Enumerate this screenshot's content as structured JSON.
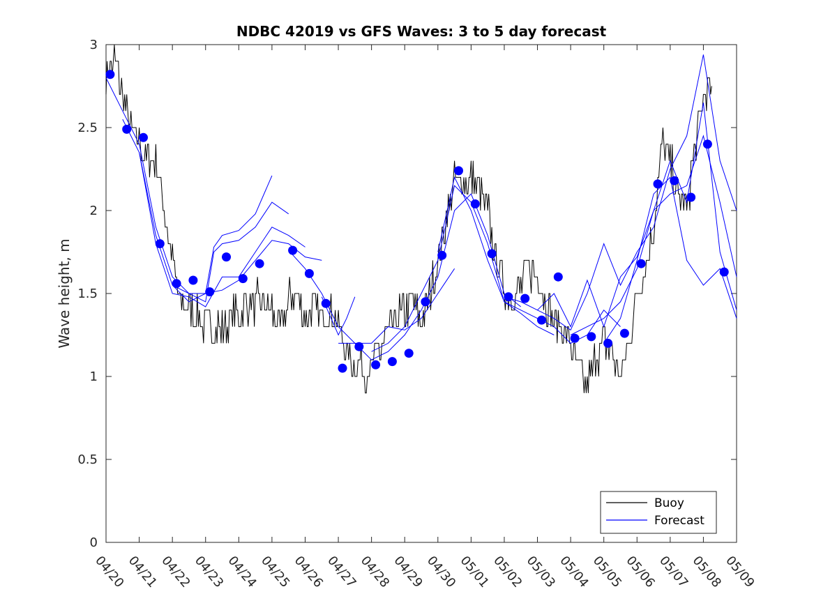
{
  "chart_data": {
    "type": "line",
    "title": "NDBC 42019 vs GFS Waves: 3 to 5 day forecast",
    "xlabel": "",
    "ylabel": "Wave height, m",
    "xlim": [
      "04/20",
      "05/09"
    ],
    "ylim": [
      0,
      3
    ],
    "x_tick_labels": [
      "04/20",
      "04/21",
      "04/22",
      "04/23",
      "04/24",
      "04/25",
      "04/26",
      "04/27",
      "04/28",
      "04/29",
      "04/30",
      "05/01",
      "05/02",
      "05/03",
      "05/04",
      "05/05",
      "05/06",
      "05/07",
      "05/08",
      "05/09"
    ],
    "y_tick_labels": [
      "0",
      "0.5",
      "1",
      "1.5",
      "2",
      "2.5",
      "3"
    ],
    "y_ticks": [
      0,
      0.5,
      1,
      1.5,
      2,
      2.5,
      3
    ],
    "grid": false,
    "legend": {
      "placement": "bottom-right",
      "entries": [
        {
          "label": "Buoy",
          "color": "#000000"
        },
        {
          "label": "Forecast",
          "color": "#0000ff"
        }
      ]
    },
    "buoy_anchors": [
      [
        "04/20 00:00",
        2.8
      ],
      [
        "04/20 06:00",
        2.9
      ],
      [
        "04/20 12:00",
        2.7
      ],
      [
        "04/20 18:00",
        2.5
      ],
      [
        "04/21 00:00",
        2.4
      ],
      [
        "04/21 06:00",
        2.3
      ],
      [
        "04/21 12:00",
        2.3
      ],
      [
        "04/21 18:00",
        2.0
      ],
      [
        "04/22 00:00",
        1.7
      ],
      [
        "04/22 06:00",
        1.45
      ],
      [
        "04/22 12:00",
        1.4
      ],
      [
        "04/22 18:00",
        1.35
      ],
      [
        "04/23 00:00",
        1.3
      ],
      [
        "04/23 06:00",
        1.3
      ],
      [
        "04/23 12:00",
        1.3
      ],
      [
        "04/23 18:00",
        1.35
      ],
      [
        "04/24 00:00",
        1.4
      ],
      [
        "04/24 06:00",
        1.45
      ],
      [
        "04/24 12:00",
        1.45
      ],
      [
        "04/24 18:00",
        1.45
      ],
      [
        "04/25 00:00",
        1.4
      ],
      [
        "04/25 06:00",
        1.25
      ],
      [
        "04/25 12:00",
        1.45
      ],
      [
        "04/25 18:00",
        1.5
      ],
      [
        "04/26 00:00",
        1.35
      ],
      [
        "04/26 06:00",
        1.4
      ],
      [
        "04/26 12:00",
        1.35
      ],
      [
        "04/26 18:00",
        1.4
      ],
      [
        "04/27 00:00",
        1.3
      ],
      [
        "04/27 06:00",
        1.15
      ],
      [
        "04/27 12:00",
        1.1
      ],
      [
        "04/27 18:00",
        1.05
      ],
      [
        "04/28 00:00",
        1.05
      ],
      [
        "04/28 06:00",
        1.15
      ],
      [
        "04/28 12:00",
        1.25
      ],
      [
        "04/28 18:00",
        1.35
      ],
      [
        "04/29 00:00",
        1.4
      ],
      [
        "04/29 06:00",
        1.45
      ],
      [
        "04/29 12:00",
        1.35
      ],
      [
        "04/29 18:00",
        1.5
      ],
      [
        "04/30 00:00",
        1.7
      ],
      [
        "04/30 06:00",
        1.95
      ],
      [
        "04/30 12:00",
        2.15
      ],
      [
        "04/30 18:00",
        2.2
      ],
      [
        "05/01 00:00",
        2.2
      ],
      [
        "05/01 06:00",
        2.15
      ],
      [
        "05/01 12:00",
        2.0
      ],
      [
        "05/01 18:00",
        1.7
      ],
      [
        "05/02 00:00",
        1.55
      ],
      [
        "05/02 06:00",
        1.5
      ],
      [
        "05/02 12:00",
        1.55
      ],
      [
        "05/02 18:00",
        1.65
      ],
      [
        "05/03 00:00",
        1.6
      ],
      [
        "05/03 06:00",
        1.45
      ],
      [
        "05/03 12:00",
        1.35
      ],
      [
        "05/03 18:00",
        1.3
      ],
      [
        "05/04 00:00",
        1.2
      ],
      [
        "05/04 06:00",
        1.05
      ],
      [
        "05/04 12:00",
        0.95
      ],
      [
        "05/04 18:00",
        1.1
      ],
      [
        "05/05 00:00",
        1.2
      ],
      [
        "05/05 06:00",
        1.15
      ],
      [
        "05/05 12:00",
        1.0
      ],
      [
        "05/05 18:00",
        1.2
      ],
      [
        "05/06 00:00",
        1.5
      ],
      [
        "05/06 06:00",
        1.65
      ],
      [
        "05/06 12:00",
        1.9
      ],
      [
        "05/06 18:00",
        2.4
      ],
      [
        "05/07 00:00",
        2.3
      ],
      [
        "05/07 06:00",
        2.1
      ],
      [
        "05/07 12:00",
        2.0
      ],
      [
        "05/07 18:00",
        2.4
      ],
      [
        "05/08 00:00",
        2.7
      ],
      [
        "05/08 06:00",
        2.75
      ]
    ],
    "forecast_markers": [
      [
        "04/20 03:00",
        2.82
      ],
      [
        "04/20 15:00",
        2.49
      ],
      [
        "04/21 03:00",
        2.44
      ],
      [
        "04/21 15:00",
        1.8
      ],
      [
        "04/22 03:00",
        1.56
      ],
      [
        "04/22 15:00",
        1.58
      ],
      [
        "04/23 03:00",
        1.51
      ],
      [
        "04/23 15:00",
        1.72
      ],
      [
        "04/24 03:00",
        1.59
      ],
      [
        "04/24 15:00",
        1.68
      ],
      [
        "04/25 15:00",
        1.76
      ],
      [
        "04/26 03:00",
        1.62
      ],
      [
        "04/26 15:00",
        1.44
      ],
      [
        "04/27 03:00",
        1.05
      ],
      [
        "04/27 15:00",
        1.18
      ],
      [
        "04/28 03:00",
        1.07
      ],
      [
        "04/28 15:00",
        1.09
      ],
      [
        "04/29 03:00",
        1.14
      ],
      [
        "04/29 15:00",
        1.45
      ],
      [
        "04/30 03:00",
        1.73
      ],
      [
        "04/30 15:00",
        2.24
      ],
      [
        "05/01 03:00",
        2.04
      ],
      [
        "05/01 15:00",
        1.74
      ],
      [
        "05/02 03:00",
        1.48
      ],
      [
        "05/02 15:00",
        1.47
      ],
      [
        "05/03 03:00",
        1.34
      ],
      [
        "05/03 15:00",
        1.6
      ],
      [
        "05/04 03:00",
        1.23
      ],
      [
        "05/04 15:00",
        1.24
      ],
      [
        "05/05 03:00",
        1.2
      ],
      [
        "05/05 15:00",
        1.26
      ],
      [
        "05/06 03:00",
        1.68
      ],
      [
        "05/06 15:00",
        2.16
      ],
      [
        "05/07 03:00",
        2.18
      ],
      [
        "05/07 15:00",
        2.08
      ],
      [
        "05/08 03:00",
        2.4
      ],
      [
        "05/08 15:00",
        1.63
      ]
    ],
    "forecast_lines": [
      [
        [
          "04/20 00:00",
          2.8
        ],
        [
          "04/20 12:00",
          2.6
        ],
        [
          "04/21 00:00",
          2.4
        ],
        [
          "04/21 12:00",
          1.9
        ],
        [
          "04/22 00:00",
          1.6
        ],
        [
          "04/22 12:00",
          1.5
        ],
        [
          "04/23 00:00",
          1.45
        ],
        [
          "04/23 06:00",
          1.75
        ],
        [
          "04/23 12:00",
          1.8
        ],
        [
          "04/24 00:00",
          1.82
        ],
        [
          "04/24 12:00",
          1.9
        ],
        [
          "04/25 00:00",
          2.05
        ],
        [
          "04/25 12:00",
          1.98
        ]
      ],
      [
        [
          "04/20 12:00",
          2.55
        ],
        [
          "04/21 00:00",
          2.35
        ],
        [
          "04/21 12:00",
          1.85
        ],
        [
          "04/22 00:00",
          1.55
        ],
        [
          "04/22 12:00",
          1.45
        ],
        [
          "04/23 00:00",
          1.5
        ],
        [
          "04/23 06:00",
          1.78
        ],
        [
          "04/23 12:00",
          1.85
        ],
        [
          "04/24 00:00",
          1.88
        ],
        [
          "04/24 12:00",
          1.98
        ],
        [
          "04/25 00:00",
          2.21
        ]
      ],
      [
        [
          "04/21 00:00",
          2.35
        ],
        [
          "04/21 12:00",
          1.8
        ],
        [
          "04/22 00:00",
          1.5
        ],
        [
          "04/22 12:00",
          1.48
        ],
        [
          "04/23 00:00",
          1.42
        ],
        [
          "04/23 12:00",
          1.6
        ],
        [
          "04/24 00:00",
          1.6
        ],
        [
          "04/24 12:00",
          1.75
        ],
        [
          "04/25 00:00",
          1.9
        ],
        [
          "04/25 12:00",
          1.85
        ],
        [
          "04/26 00:00",
          1.78
        ]
      ],
      [
        [
          "04/22 00:00",
          1.55
        ],
        [
          "04/22 12:00",
          1.5
        ],
        [
          "04/23 00:00",
          1.5
        ],
        [
          "04/23 12:00",
          1.52
        ],
        [
          "04/24 00:00",
          1.58
        ],
        [
          "04/24 12:00",
          1.7
        ],
        [
          "04/25 00:00",
          1.82
        ],
        [
          "04/25 12:00",
          1.8
        ],
        [
          "04/26 00:00",
          1.72
        ],
        [
          "04/26 12:00",
          1.7
        ]
      ],
      [
        [
          "04/25 12:00",
          1.76
        ],
        [
          "04/26 00:00",
          1.65
        ],
        [
          "04/26 12:00",
          1.5
        ],
        [
          "04/27 00:00",
          1.3
        ],
        [
          "04/27 12:00",
          1.2
        ],
        [
          "04/28 00:00",
          1.2
        ],
        [
          "04/28 12:00",
          1.3
        ],
        [
          "04/29 00:00",
          1.28
        ],
        [
          "04/29 12:00",
          1.35
        ],
        [
          "04/30 00:00",
          1.5
        ],
        [
          "04/30 12:00",
          1.65
        ]
      ],
      [
        [
          "04/26 12:00",
          1.48
        ],
        [
          "04/27 00:00",
          1.25
        ],
        [
          "04/27 06:00",
          1.35
        ],
        [
          "04/27 12:00",
          1.48
        ]
      ],
      [
        [
          "04/27 00:00",
          1.2
        ],
        [
          "04/27 12:00",
          1.2
        ],
        [
          "04/28 00:00",
          1.1
        ],
        [
          "04/28 12:00",
          1.15
        ],
        [
          "04/29 00:00",
          1.25
        ],
        [
          "04/29 12:00",
          1.4
        ],
        [
          "04/30 00:00",
          1.6
        ],
        [
          "04/30 12:00",
          2.0
        ],
        [
          "05/01 00:00",
          2.1
        ],
        [
          "05/01 12:00",
          1.85
        ],
        [
          "05/02 00:00",
          1.5
        ],
        [
          "05/02 12:00",
          1.42
        ]
      ],
      [
        [
          "04/28 00:00",
          1.15
        ],
        [
          "04/28 12:00",
          1.2
        ],
        [
          "04/29 00:00",
          1.3
        ],
        [
          "04/29 12:00",
          1.5
        ],
        [
          "04/30 00:00",
          1.7
        ],
        [
          "04/30 12:00",
          2.15
        ],
        [
          "05/01 00:00",
          2.05
        ],
        [
          "05/01 12:00",
          1.8
        ],
        [
          "05/02 00:00",
          1.45
        ],
        [
          "05/02 12:00",
          1.38
        ],
        [
          "05/03 00:00",
          1.3
        ],
        [
          "05/03 12:00",
          1.25
        ]
      ],
      [
        [
          "04/30 00:00",
          1.75
        ],
        [
          "04/30 12:00",
          2.2
        ],
        [
          "05/01 00:00",
          2.0
        ],
        [
          "05/01 12:00",
          1.7
        ],
        [
          "05/02 00:00",
          1.45
        ],
        [
          "05/02 12:00",
          1.4
        ],
        [
          "05/03 00:00",
          1.35
        ],
        [
          "05/03 12:00",
          1.3
        ],
        [
          "05/04 00:00",
          1.2
        ],
        [
          "05/04 12:00",
          1.25
        ],
        [
          "05/05 00:00",
          1.4
        ],
        [
          "05/05 12:00",
          1.3
        ]
      ],
      [
        [
          "05/02 00:00",
          1.48
        ],
        [
          "05/02 12:00",
          1.45
        ],
        [
          "05/03 00:00",
          1.4
        ],
        [
          "05/03 12:00",
          1.35
        ],
        [
          "05/04 00:00",
          1.28
        ],
        [
          "05/04 12:00",
          1.5
        ],
        [
          "05/05 00:00",
          1.8
        ],
        [
          "05/05 12:00",
          1.55
        ],
        [
          "05/06 00:00",
          1.75
        ],
        [
          "05/06 12:00",
          1.9
        ],
        [
          "05/07 00:00",
          2.25
        ],
        [
          "05/07 12:00",
          2.45
        ],
        [
          "05/08 00:00",
          2.94
        ],
        [
          "05/08 12:00",
          2.3
        ],
        [
          "05/09 00:00",
          2.0
        ]
      ],
      [
        [
          "05/03 00:00",
          1.4
        ],
        [
          "05/03 12:00",
          1.5
        ],
        [
          "05/04 00:00",
          1.3
        ],
        [
          "05/04 12:00",
          1.58
        ],
        [
          "05/05 00:00",
          1.3
        ],
        [
          "05/05 12:00",
          1.6
        ],
        [
          "05/06 00:00",
          1.72
        ],
        [
          "05/06 12:00",
          2.0
        ],
        [
          "05/07 00:00",
          2.3
        ],
        [
          "05/07 12:00",
          2.05
        ],
        [
          "05/08 00:00",
          2.65
        ],
        [
          "05/08 12:00",
          1.75
        ],
        [
          "05/09 00:00",
          1.4
        ]
      ],
      [
        [
          "05/04 00:00",
          1.25
        ],
        [
          "05/04 12:00",
          1.3
        ],
        [
          "05/05 00:00",
          1.35
        ],
        [
          "05/05 12:00",
          1.45
        ],
        [
          "05/06 00:00",
          1.65
        ],
        [
          "05/06 12:00",
          2.0
        ],
        [
          "05/07 00:00",
          2.1
        ],
        [
          "05/07 12:00",
          2.15
        ],
        [
          "05/08 00:00",
          2.45
        ],
        [
          "05/08 12:00",
          2.05
        ],
        [
          "05/09 00:00",
          1.6
        ]
      ],
      [
        [
          "05/05 00:00",
          1.2
        ],
        [
          "05/05 12:00",
          1.35
        ],
        [
          "05/06 00:00",
          1.7
        ],
        [
          "05/06 12:00",
          2.1
        ],
        [
          "05/07 00:00",
          2.2
        ],
        [
          "05/07 12:00",
          1.7
        ],
        [
          "05/08 00:00",
          1.55
        ],
        [
          "05/08 12:00",
          1.65
        ],
        [
          "05/09 00:00",
          1.35
        ]
      ]
    ],
    "colors": {
      "buoy": "#000000",
      "forecast": "#0000ff",
      "axes": "#262626"
    }
  }
}
